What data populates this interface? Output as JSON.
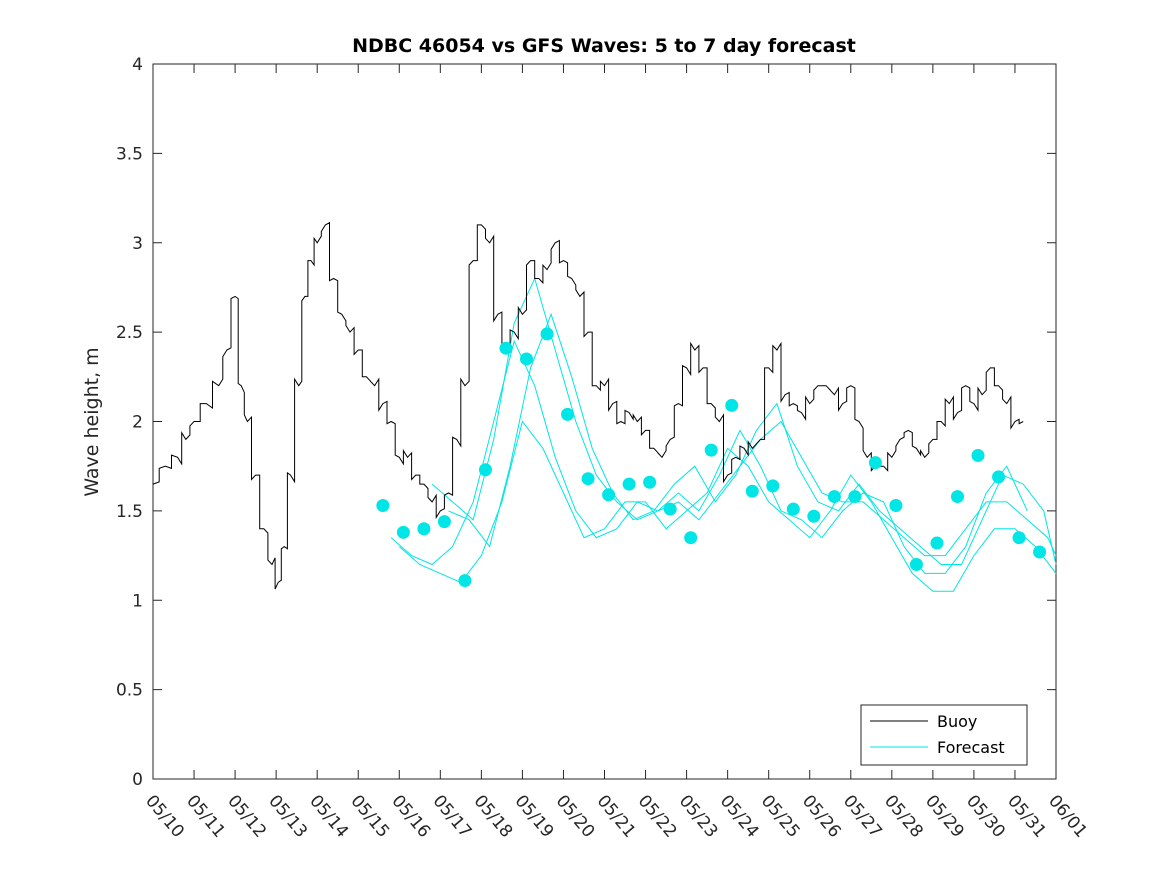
{
  "chart_data": {
    "type": "line",
    "title": "NDBC 46054 vs GFS Waves: 5 to 7 day forecast",
    "xlabel": "",
    "ylabel": "Wave height, m",
    "xlim": [
      "05/10",
      "06/01"
    ],
    "ylim": [
      0,
      4
    ],
    "x_ticks": [
      "05/10",
      "05/11",
      "05/12",
      "05/13",
      "05/14",
      "05/15",
      "05/16",
      "05/17",
      "05/18",
      "05/19",
      "05/20",
      "05/21",
      "05/22",
      "05/23",
      "05/24",
      "05/25",
      "05/26",
      "05/27",
      "05/28",
      "05/29",
      "05/30",
      "05/31",
      "06/01"
    ],
    "y_ticks": [
      "0",
      "0.5",
      "1",
      "1.5",
      "2",
      "2.5",
      "3",
      "3.5",
      "4"
    ],
    "grid": false,
    "legend_position": "bottom-right",
    "colors": {
      "buoy": "#000000",
      "forecast": "#00e5e5",
      "axes": "#262626"
    },
    "series": [
      {
        "name": "Buoy",
        "style": "line",
        "x_days": [
          0,
          0.3,
          0.6,
          0.8,
          1.0,
          1.3,
          1.6,
          1.8,
          2.0,
          2.15,
          2.3,
          2.5,
          2.7,
          2.9,
          3.05,
          3.2,
          3.35,
          3.55,
          3.7,
          3.85,
          4.0,
          4.2,
          4.4,
          4.6,
          4.8,
          5.0,
          5.2,
          5.4,
          5.6,
          5.8,
          6.0,
          6.2,
          6.4,
          6.6,
          6.8,
          7.0,
          7.2,
          7.4,
          7.6,
          7.8,
          8.0,
          8.2,
          8.4,
          8.6,
          8.8,
          9.0,
          9.2,
          9.4,
          9.6,
          9.8,
          10.0,
          10.2,
          10.4,
          10.6,
          10.8,
          11.0,
          11.2,
          11.4,
          11.6,
          11.8,
          12.0,
          12.2,
          12.4,
          12.6,
          12.8,
          13.0,
          13.2,
          13.4,
          13.6,
          13.8,
          14.0,
          14.2,
          14.4,
          14.6,
          14.8,
          15.0,
          15.2,
          15.4,
          15.6,
          15.8,
          16.0,
          16.2,
          16.4,
          16.6,
          16.8,
          17.0,
          17.2,
          17.4,
          17.6,
          17.8,
          18.0,
          18.2,
          18.4,
          18.6,
          18.8,
          19.0,
          19.2,
          19.4,
          19.6,
          19.8,
          20.0,
          20.2,
          20.4,
          20.6,
          20.8,
          21.0,
          21.2
        ],
        "values": [
          1.65,
          1.75,
          1.8,
          1.9,
          2.0,
          2.1,
          2.2,
          2.4,
          2.7,
          2.2,
          2.0,
          1.7,
          1.4,
          1.2,
          1.1,
          1.3,
          1.7,
          2.2,
          2.7,
          2.9,
          3.0,
          3.1,
          2.8,
          2.6,
          2.5,
          2.4,
          2.25,
          2.2,
          2.1,
          2.0,
          1.8,
          1.8,
          1.7,
          1.65,
          1.55,
          1.5,
          1.6,
          1.9,
          2.2,
          2.9,
          3.1,
          3.0,
          2.6,
          2.4,
          2.5,
          2.6,
          2.9,
          2.8,
          2.85,
          3.0,
          2.9,
          2.8,
          2.7,
          2.5,
          2.2,
          2.2,
          2.1,
          2.0,
          2.05,
          2.0,
          1.95,
          1.85,
          1.8,
          1.9,
          2.1,
          2.3,
          2.4,
          2.3,
          2.1,
          2.0,
          1.7,
          1.8,
          1.85,
          1.85,
          1.9,
          2.3,
          2.4,
          2.15,
          2.1,
          2.05,
          2.1,
          2.2,
          2.2,
          2.15,
          2.1,
          2.2,
          2.0,
          1.8,
          1.75,
          1.75,
          1.8,
          1.9,
          1.95,
          1.85,
          1.8,
          1.9,
          2.0,
          2.1,
          2.05,
          2.2,
          2.1,
          2.15,
          2.3,
          2.2,
          2.1,
          2.0,
          2.0
        ]
      },
      {
        "name": "Forecast",
        "style": "lines+markers",
        "marker_x_days": [
          5.6,
          6.1,
          6.6,
          7.1,
          7.6,
          8.1,
          8.6,
          9.1,
          9.6,
          10.1,
          10.6,
          11.1,
          11.6,
          12.1,
          12.6,
          13.1,
          13.6,
          14.1,
          14.6,
          15.1,
          15.6,
          16.1,
          16.6,
          17.1,
          17.6,
          18.1,
          18.6,
          19.1,
          19.6,
          20.1,
          20.6,
          21.1,
          21.6
        ],
        "marker_values": [
          1.53,
          1.38,
          1.4,
          1.44,
          1.11,
          1.73,
          2.41,
          2.35,
          2.49,
          2.04,
          1.68,
          1.59,
          1.65,
          1.66,
          1.51,
          1.35,
          1.84,
          2.09,
          1.61,
          1.64,
          1.51,
          1.47,
          1.58,
          1.58,
          1.77,
          1.53,
          1.2,
          1.32,
          1.58,
          1.81,
          1.69,
          1.35,
          1.27
        ],
        "member_lines": [
          {
            "x_days": [
              6.8,
              7.3,
              7.8,
              8.3,
              8.8,
              9.3,
              9.8,
              10.3,
              10.8,
              11.3,
              11.8,
              12.3,
              12.8,
              13.3,
              13.8,
              14.3,
              14.8,
              15.3,
              15.8,
              16.3,
              16.8,
              17.3,
              17.8,
              18.3,
              18.8,
              19.3,
              19.8,
              20.3,
              20.8,
              21.3,
              21.8,
              22.0
            ],
            "values": [
              1.65,
              1.55,
              1.45,
              1.9,
              2.55,
              2.8,
              2.4,
              2.0,
              1.7,
              1.55,
              1.45,
              1.5,
              1.55,
              1.45,
              1.6,
              1.75,
              1.9,
              2.0,
              1.8,
              1.6,
              1.55,
              1.55,
              1.45,
              1.35,
              1.25,
              1.25,
              1.4,
              1.55,
              1.55,
              1.45,
              1.35,
              1.25
            ]
          },
          {
            "x_days": [
              7.2,
              7.7,
              8.2,
              8.7,
              9.2,
              9.7,
              10.2,
              10.7,
              11.2,
              11.7,
              12.2,
              12.7,
              13.2,
              13.7,
              14.2,
              14.7,
              15.2,
              15.7,
              16.2,
              16.7,
              17.2,
              17.7,
              18.2,
              18.7,
              19.2,
              19.7,
              20.2,
              20.7,
              21.2,
              21.7,
              22.0
            ],
            "values": [
              1.5,
              1.45,
              1.3,
              1.75,
              2.3,
              2.6,
              2.25,
              1.85,
              1.6,
              1.45,
              1.5,
              1.65,
              1.75,
              1.55,
              1.7,
              1.95,
              2.1,
              1.75,
              1.55,
              1.5,
              1.65,
              1.5,
              1.4,
              1.3,
              1.2,
              1.2,
              1.45,
              1.7,
              1.65,
              1.5,
              1.2
            ]
          },
          {
            "x_days": [
              5.8,
              6.3,
              6.8,
              7.3,
              7.8,
              8.3,
              8.8,
              9.3,
              9.8,
              10.3,
              10.8,
              11.3,
              11.8,
              12.3,
              12.8,
              13.3,
              13.8,
              14.3,
              14.8,
              15.3,
              15.8,
              16.3,
              16.8,
              17.3,
              17.8,
              18.3,
              18.8,
              19.3,
              19.8,
              20.3,
              20.8,
              21.3
            ],
            "values": [
              1.35,
              1.25,
              1.2,
              1.3,
              1.55,
              2.0,
              2.45,
              2.2,
              1.8,
              1.5,
              1.35,
              1.4,
              1.55,
              1.5,
              1.6,
              1.5,
              1.7,
              1.95,
              1.75,
              1.5,
              1.45,
              1.35,
              1.5,
              1.6,
              1.55,
              1.3,
              1.15,
              1.15,
              1.3,
              1.6,
              1.75,
              1.5
            ]
          },
          {
            "x_days": [
              6.0,
              6.5,
              7.0,
              7.5,
              8.0,
              8.5,
              9.0,
              9.5,
              10.0,
              10.5,
              11.0,
              11.5,
              12.0,
              12.5,
              13.0,
              13.5,
              14.0,
              14.5,
              15.0,
              15.5,
              16.0,
              16.5,
              17.0,
              17.5,
              18.0,
              18.5,
              19.0,
              19.5,
              20.0,
              20.5,
              21.0,
              21.5,
              22.0
            ],
            "values": [
              1.3,
              1.2,
              1.15,
              1.1,
              1.25,
              1.55,
              2.0,
              1.85,
              1.6,
              1.35,
              1.4,
              1.55,
              1.55,
              1.4,
              1.5,
              1.6,
              1.85,
              1.75,
              1.55,
              1.45,
              1.35,
              1.5,
              1.7,
              1.55,
              1.35,
              1.15,
              1.05,
              1.05,
              1.25,
              1.4,
              1.4,
              1.3,
              1.15
            ]
          }
        ]
      }
    ],
    "legend": [
      {
        "label": "Buoy",
        "color": "#000000"
      },
      {
        "label": "Forecast",
        "color": "#00e5e5"
      }
    ]
  }
}
